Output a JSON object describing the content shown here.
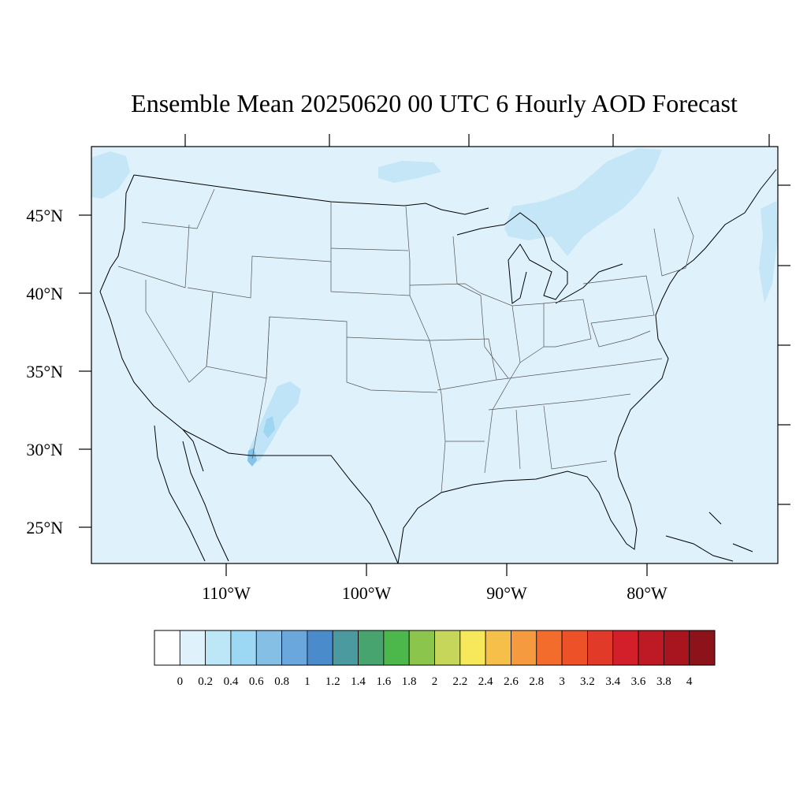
{
  "chart_data": {
    "type": "heatmap",
    "title": "Ensemble Mean 20250620 00 UTC 6 Hourly AOD Forecast",
    "variable": "AOD",
    "projection": "map-contour",
    "lon_ticks": [
      {
        "value": -110,
        "label": "110°W"
      },
      {
        "value": -100,
        "label": "100°W"
      },
      {
        "value": -90,
        "label": "90°W"
      },
      {
        "value": -80,
        "label": "80°W"
      }
    ],
    "lat_ticks": [
      {
        "value": 45,
        "label": "45°N"
      },
      {
        "value": 40,
        "label": "40°N"
      },
      {
        "value": 35,
        "label": "35°N"
      },
      {
        "value": 30,
        "label": "30°N"
      },
      {
        "value": 25,
        "label": "25°N"
      }
    ],
    "colorbar": {
      "levels": [
        "0",
        "0.2",
        "0.4",
        "0.6",
        "0.8",
        "1",
        "1.2",
        "1.4",
        "1.6",
        "1.8",
        "2",
        "2.2",
        "2.4",
        "2.6",
        "2.8",
        "3",
        "3.2",
        "3.4",
        "3.6",
        "3.8",
        "4"
      ],
      "colors": [
        "#ffffff",
        "#dff2fb",
        "#bde6f7",
        "#9cd8f4",
        "#85bfe6",
        "#6aa7dc",
        "#4a8bcb",
        "#4a9a9f",
        "#47a46f",
        "#4cb74b",
        "#8bc54b",
        "#c5d65a",
        "#f6e85a",
        "#f6bf4a",
        "#f59a3e",
        "#f36c2c",
        "#ec5128",
        "#e13a28",
        "#d21f2a",
        "#be1a26",
        "#a8151f",
        "#8e1219"
      ]
    },
    "features": [
      {
        "name": "background AOD",
        "range": "0 - 0.2"
      },
      {
        "name": "plume over New Mexico",
        "range": "0.4 - 0.8"
      },
      {
        "name": "haze over Great Lakes and Canada",
        "range": "0.2 - 0.4"
      }
    ]
  }
}
